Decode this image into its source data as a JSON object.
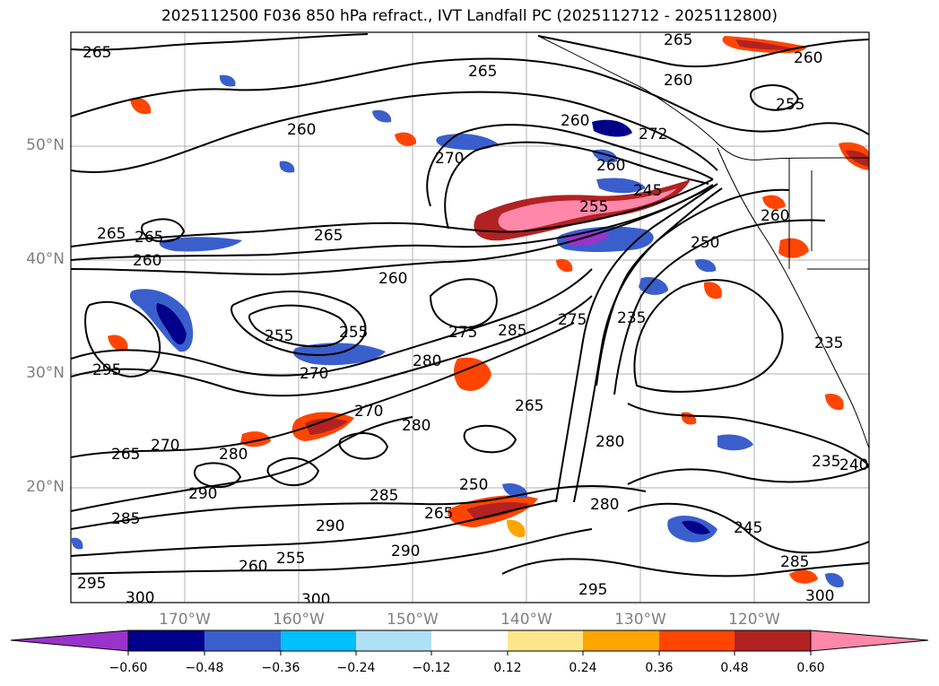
{
  "title": "2025112500 F036 850 hPa refract., IVT Landfall PC (2025112712 - 2025112800)",
  "axes": {
    "lat_labels": [
      "50°N",
      "40°N",
      "30°N",
      "20°N"
    ],
    "lon_labels": [
      "170°W",
      "160°W",
      "150°W",
      "140°W",
      "130°W",
      "120°W"
    ]
  },
  "contour_labels": [
    "265",
    "265",
    "265",
    "260",
    "260",
    "270",
    "272",
    "260",
    "255",
    "260",
    "265",
    "265",
    "260",
    "245",
    "255",
    "260",
    "260",
    "265",
    "260",
    "255",
    "275",
    "285",
    "275",
    "255",
    "235",
    "270",
    "280",
    "235",
    "295",
    "270",
    "265",
    "280",
    "285",
    "265",
    "270",
    "250",
    "280",
    "290",
    "260",
    "285",
    "255",
    "265",
    "290",
    "280",
    "245",
    "290",
    "300",
    "295",
    "300",
    "295",
    "235",
    "240",
    "300",
    "285",
    "280",
    "250"
  ],
  "colorbar": {
    "ticks": [
      "−0.60",
      "−0.48",
      "−0.36",
      "−0.24",
      "−0.12",
      "0.12",
      "0.24",
      "0.36",
      "0.48",
      "0.60"
    ],
    "colors": [
      "#9933cc",
      "#00008b",
      "#3a5fcd",
      "#00bfff",
      "#b0e0f6",
      "#ffffff",
      "#fde68a",
      "#ffa500",
      "#ff4500",
      "#b22222",
      "#ff88aa"
    ]
  }
}
